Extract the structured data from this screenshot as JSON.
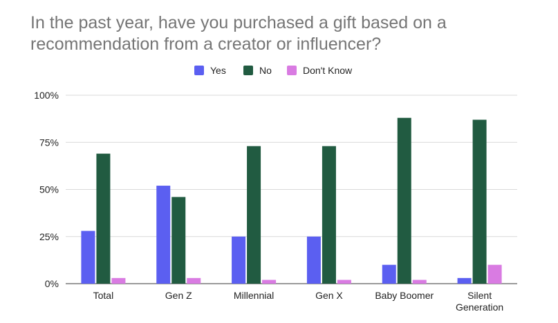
{
  "chart_data": {
    "type": "bar",
    "title": "In the past year, have you purchased a gift based on a recommendation from a creator or influencer?",
    "categories": [
      [
        "Total"
      ],
      [
        "Gen Z"
      ],
      [
        "Millennial"
      ],
      [
        "Gen X"
      ],
      [
        "Baby Boomer"
      ],
      [
        "Silent",
        "Generation"
      ]
    ],
    "series": [
      {
        "name": "Yes",
        "color": "#5b5ff1",
        "values": [
          28,
          52,
          25,
          25,
          10,
          3
        ]
      },
      {
        "name": "No",
        "color": "#215b41",
        "values": [
          69,
          46,
          73,
          73,
          88,
          87
        ]
      },
      {
        "name": "Don't Know",
        "color": "#d97be2",
        "values": [
          3,
          3,
          2,
          2,
          2,
          10
        ]
      }
    ],
    "ylim": [
      0,
      100
    ],
    "yticks": [
      0,
      25,
      50,
      75,
      100
    ],
    "ytick_labels": [
      "0%",
      "25%",
      "50%",
      "75%",
      "100%"
    ],
    "xlabel": "",
    "ylabel": "",
    "grid": true,
    "legend_position": "top"
  }
}
